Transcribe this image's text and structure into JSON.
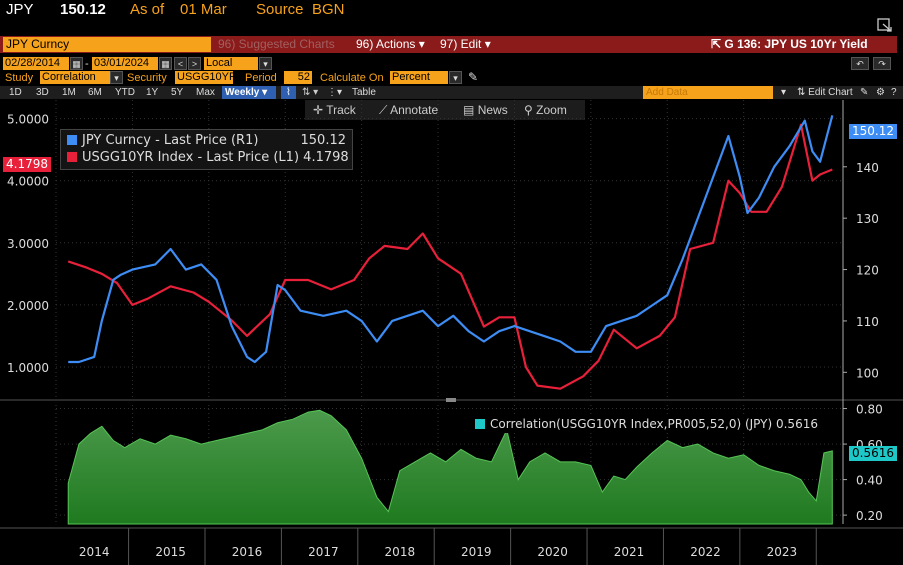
{
  "quote": {
    "ticker": "JPY",
    "price": "150.12",
    "as_of_label": "As of",
    "as_of_date": "01 Mar",
    "source_label": "Source",
    "source_value": "BGN"
  },
  "function_bar": {
    "security": "JPY Curncy",
    "suggested_charts": "96) Suggested Charts",
    "actions": "96) Actions",
    "edit": "97) Edit",
    "chart_title": "G 136: JPY US 10Yr Yield"
  },
  "dates": {
    "start": "02/28/2014",
    "end": "03/01/2024",
    "currency": "Local CCY"
  },
  "study": {
    "study_label": "Study",
    "study_value": "Correlation",
    "security_label": "Security",
    "security_value": "USGG10YR",
    "period_label": "Period",
    "period_value": "52",
    "calc_label": "Calculate On",
    "calc_value": "Percent"
  },
  "range_bar": {
    "items": [
      "1D",
      "3D",
      "1M",
      "6M",
      "YTD",
      "1Y",
      "5Y",
      "Max"
    ],
    "frequency": "Weekly",
    "table": "Table",
    "add_data_placeholder": "Add Data",
    "edit_chart": "Edit Chart"
  },
  "tools": {
    "track": "Track",
    "annotate": "Annotate",
    "news": "News",
    "zoom": "Zoom"
  },
  "legend": {
    "series1": "JPY Curncy - Last Price (R1)",
    "series1_value": "150.12",
    "series2": "USGG10YR Index - Last Price (L1)",
    "series2_value": "4.1798"
  },
  "tags": {
    "left_yield": "4.1798",
    "right_price": "150.12",
    "corr_value": "0.5616"
  },
  "correlation_legend": "Correlation(USGG10YR Index,PR005,52,0) (JPY) 0.5616",
  "colors": {
    "jpy": "#3d8df5",
    "yield": "#e8203a",
    "corr_fill": "#2e8b2e",
    "corr_line": "#56c456",
    "accent": "#f7a21b",
    "bar_red": "#8b1a1a"
  },
  "chart_data": [
    {
      "type": "line",
      "title": "",
      "x_ticks": [
        "2014",
        "2015",
        "2016",
        "2017",
        "2018",
        "2019",
        "2020",
        "2021",
        "2022",
        "2023"
      ],
      "left_axis": {
        "series": "USGG10YR Index",
        "ylim": [
          0.5,
          5.3
        ],
        "ticks": [
          "1.0000",
          "2.0000",
          "3.0000",
          "4.0000",
          "5.0000"
        ]
      },
      "right_axis": {
        "series": "JPY Curncy",
        "ylim": [
          95,
          153
        ],
        "ticks": [
          "100",
          "110",
          "120",
          "130",
          "140"
        ]
      },
      "series": [
        {
          "name": "JPY Curncy - Last Price (R1)",
          "axis": "right",
          "x": [
            2014.16,
            2014.3,
            2014.5,
            2014.6,
            2014.75,
            2014.85,
            2015.0,
            2015.3,
            2015.5,
            2015.7,
            2015.9,
            2016.1,
            2016.3,
            2016.5,
            2016.6,
            2016.75,
            2016.9,
            2017.0,
            2017.2,
            2017.5,
            2017.8,
            2018.0,
            2018.2,
            2018.4,
            2018.6,
            2018.8,
            2019.0,
            2019.2,
            2019.4,
            2019.6,
            2019.8,
            2020.0,
            2020.2,
            2020.4,
            2020.6,
            2020.8,
            2021.0,
            2021.2,
            2021.4,
            2021.6,
            2021.8,
            2022.0,
            2022.2,
            2022.4,
            2022.6,
            2022.8,
            2022.95,
            2023.05,
            2023.2,
            2023.4,
            2023.6,
            2023.8,
            2023.9,
            2024.0,
            2024.16
          ],
          "values": [
            102,
            102,
            103,
            110,
            118,
            119,
            120,
            121,
            124,
            120,
            121,
            118,
            109,
            103,
            102,
            104,
            117,
            116,
            112,
            111,
            112,
            110,
            106,
            110,
            111,
            112,
            109,
            111,
            108,
            106,
            108,
            109,
            108,
            107,
            106,
            104,
            104,
            109,
            110,
            111,
            113,
            115,
            122,
            130,
            138,
            146,
            138,
            131,
            134,
            140,
            144,
            149,
            143,
            141,
            150
          ]
        },
        {
          "name": "USGG10YR Index - Last Price (L1)",
          "axis": "left",
          "x": [
            2014.16,
            2014.4,
            2014.6,
            2014.8,
            2015.0,
            2015.2,
            2015.5,
            2015.8,
            2016.0,
            2016.3,
            2016.5,
            2016.8,
            2017.0,
            2017.3,
            2017.6,
            2017.9,
            2018.1,
            2018.3,
            2018.6,
            2018.8,
            2019.0,
            2019.3,
            2019.6,
            2019.8,
            2020.0,
            2020.15,
            2020.3,
            2020.6,
            2020.9,
            2021.1,
            2021.3,
            2021.6,
            2021.9,
            2022.1,
            2022.3,
            2022.6,
            2022.8,
            2022.95,
            2023.1,
            2023.3,
            2023.5,
            2023.75,
            2023.9,
            2024.0,
            2024.16
          ],
          "values": [
            2.7,
            2.6,
            2.5,
            2.35,
            2.0,
            2.1,
            2.3,
            2.2,
            2.05,
            1.75,
            1.5,
            1.85,
            2.4,
            2.4,
            2.25,
            2.4,
            2.75,
            2.95,
            2.9,
            3.15,
            2.75,
            2.5,
            1.65,
            1.8,
            1.8,
            1.0,
            0.7,
            0.65,
            0.85,
            1.1,
            1.6,
            1.3,
            1.5,
            1.8,
            2.9,
            3.0,
            4.0,
            3.8,
            3.5,
            3.5,
            3.9,
            4.9,
            4.0,
            4.1,
            4.18
          ]
        }
      ]
    },
    {
      "type": "area",
      "title": "Correlation(USGG10YR Index,PR005,52,0) (JPY)",
      "ylim": [
        0.15,
        0.82
      ],
      "y_ticks": [
        "0.20",
        "0.40",
        "0.60",
        "0.80"
      ],
      "series": [
        {
          "name": "Correlation(USGG10YR Index,PR005,52,0) (JPY)",
          "x": [
            2014.16,
            2014.3,
            2014.45,
            2014.6,
            2014.75,
            2014.9,
            2015.1,
            2015.3,
            2015.5,
            2015.7,
            2015.9,
            2016.1,
            2016.3,
            2016.5,
            2016.7,
            2016.9,
            2017.1,
            2017.3,
            2017.45,
            2017.6,
            2017.8,
            2018.0,
            2018.2,
            2018.35,
            2018.5,
            2018.7,
            2018.9,
            2019.1,
            2019.3,
            2019.5,
            2019.7,
            2019.9,
            2020.05,
            2020.2,
            2020.4,
            2020.6,
            2020.8,
            2021.0,
            2021.15,
            2021.3,
            2021.45,
            2021.6,
            2021.8,
            2022.0,
            2022.2,
            2022.4,
            2022.6,
            2022.8,
            2023.0,
            2023.2,
            2023.4,
            2023.6,
            2023.75,
            2023.85,
            2023.95,
            2024.05,
            2024.16
          ],
          "values": [
            0.38,
            0.6,
            0.66,
            0.7,
            0.62,
            0.58,
            0.63,
            0.6,
            0.65,
            0.63,
            0.6,
            0.62,
            0.64,
            0.66,
            0.68,
            0.72,
            0.74,
            0.78,
            0.79,
            0.76,
            0.68,
            0.52,
            0.3,
            0.22,
            0.45,
            0.5,
            0.55,
            0.5,
            0.57,
            0.52,
            0.5,
            0.68,
            0.4,
            0.5,
            0.55,
            0.5,
            0.5,
            0.48,
            0.33,
            0.42,
            0.4,
            0.47,
            0.55,
            0.62,
            0.58,
            0.6,
            0.55,
            0.52,
            0.54,
            0.48,
            0.45,
            0.43,
            0.4,
            0.33,
            0.28,
            0.55,
            0.5616
          ]
        }
      ]
    }
  ]
}
